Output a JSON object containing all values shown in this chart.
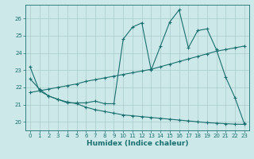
{
  "xlabel": "Humidex (Indice chaleur)",
  "bg_color": "#cce8e8",
  "line_color": "#1a7070",
  "grid_color": "#aacccc",
  "xlim": [
    -0.5,
    23.5
  ],
  "ylim": [
    19.5,
    26.8
  ],
  "yticks": [
    20,
    21,
    22,
    23,
    24,
    25,
    26
  ],
  "xticks": [
    0,
    1,
    2,
    3,
    4,
    5,
    6,
    7,
    8,
    9,
    10,
    11,
    12,
    13,
    14,
    15,
    16,
    17,
    18,
    19,
    20,
    21,
    22,
    23
  ],
  "line1_x": [
    0,
    1,
    2,
    3,
    4,
    5,
    6,
    7,
    8,
    9,
    10,
    11,
    12,
    13,
    14,
    15,
    16,
    17,
    18,
    19,
    20,
    21,
    22,
    23
  ],
  "line1_y": [
    23.2,
    21.8,
    21.5,
    21.3,
    21.1,
    21.1,
    21.1,
    21.2,
    21.05,
    21.05,
    24.8,
    25.5,
    25.75,
    23.0,
    24.4,
    25.8,
    26.5,
    24.3,
    25.3,
    25.4,
    24.2,
    22.6,
    21.4,
    19.9
  ],
  "line2_x": [
    0,
    1,
    2,
    3,
    4,
    5,
    6,
    7,
    8,
    9,
    10,
    11,
    12,
    13,
    14,
    15,
    16,
    17,
    18,
    19,
    20,
    21,
    22,
    23
  ],
  "line2_y": [
    21.7,
    21.8,
    21.9,
    22.0,
    22.1,
    22.2,
    22.35,
    22.45,
    22.55,
    22.65,
    22.75,
    22.85,
    22.95,
    23.05,
    23.2,
    23.35,
    23.5,
    23.65,
    23.8,
    23.95,
    24.1,
    24.2,
    24.3,
    24.4
  ],
  "line3_x": [
    0,
    1,
    2,
    3,
    4,
    5,
    6,
    7,
    8,
    9,
    10,
    11,
    12,
    13,
    14,
    15,
    16,
    17,
    18,
    19,
    20,
    21,
    22,
    23
  ],
  "line3_y": [
    22.5,
    21.9,
    21.5,
    21.3,
    21.15,
    21.05,
    20.85,
    20.7,
    20.6,
    20.5,
    20.4,
    20.35,
    20.3,
    20.25,
    20.2,
    20.15,
    20.1,
    20.05,
    20.0,
    19.95,
    19.92,
    19.89,
    19.86,
    19.85
  ]
}
